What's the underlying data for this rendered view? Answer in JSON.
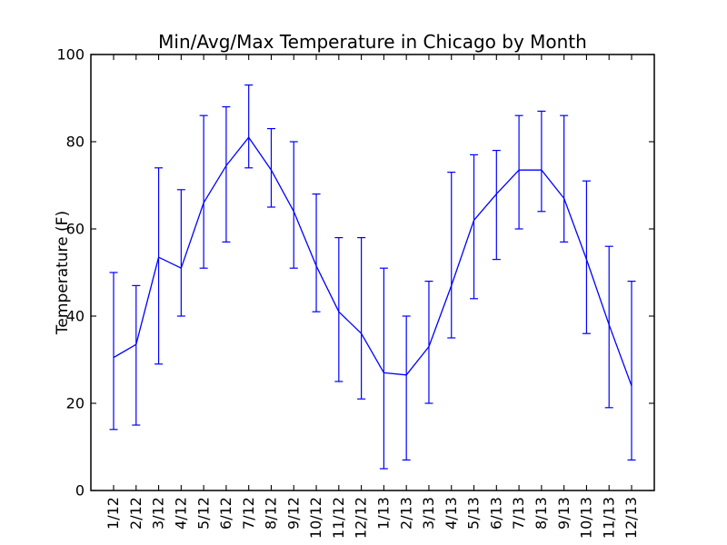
{
  "chart_data": {
    "type": "line",
    "title": "Min/Avg/Max Temperature in Chicago by Month",
    "xlabel": "",
    "ylabel": "Temperature (F)",
    "categories": [
      "1/12",
      "2/12",
      "3/12",
      "4/12",
      "5/12",
      "6/12",
      "7/12",
      "8/12",
      "9/12",
      "10/12",
      "11/12",
      "12/12",
      "1/13",
      "2/13",
      "3/13",
      "4/13",
      "5/13",
      "6/13",
      "7/13",
      "8/13",
      "9/13",
      "10/13",
      "11/13",
      "12/13"
    ],
    "series": [
      {
        "name": "avg",
        "values": [
          30.5,
          33.5,
          53.5,
          51,
          66,
          74.5,
          81,
          73.5,
          64,
          51.5,
          41,
          36,
          27,
          26.5,
          33,
          47,
          62,
          68,
          73.5,
          73.5,
          67,
          53,
          38,
          24
        ]
      },
      {
        "name": "min",
        "values": [
          14,
          15,
          29,
          40,
          51,
          57,
          74,
          65,
          51,
          41,
          25,
          21,
          5,
          7,
          20,
          35,
          44,
          53,
          60,
          64,
          57,
          36,
          19,
          7
        ]
      },
      {
        "name": "max",
        "values": [
          50,
          47,
          74,
          69,
          86,
          88,
          93,
          83,
          80,
          68,
          58,
          58,
          51,
          40,
          48,
          73,
          77,
          78,
          86,
          87,
          86,
          71,
          56,
          48
        ]
      }
    ],
    "ylim": [
      0,
      100
    ],
    "yticks": [
      0,
      20,
      40,
      60,
      80,
      100
    ],
    "grid": false,
    "legend_position": "none",
    "errorbars": true,
    "x_tick_rotation": 90,
    "line_color": "#0000ff",
    "axis_color": "#000000",
    "background_color": "#ffffff"
  }
}
